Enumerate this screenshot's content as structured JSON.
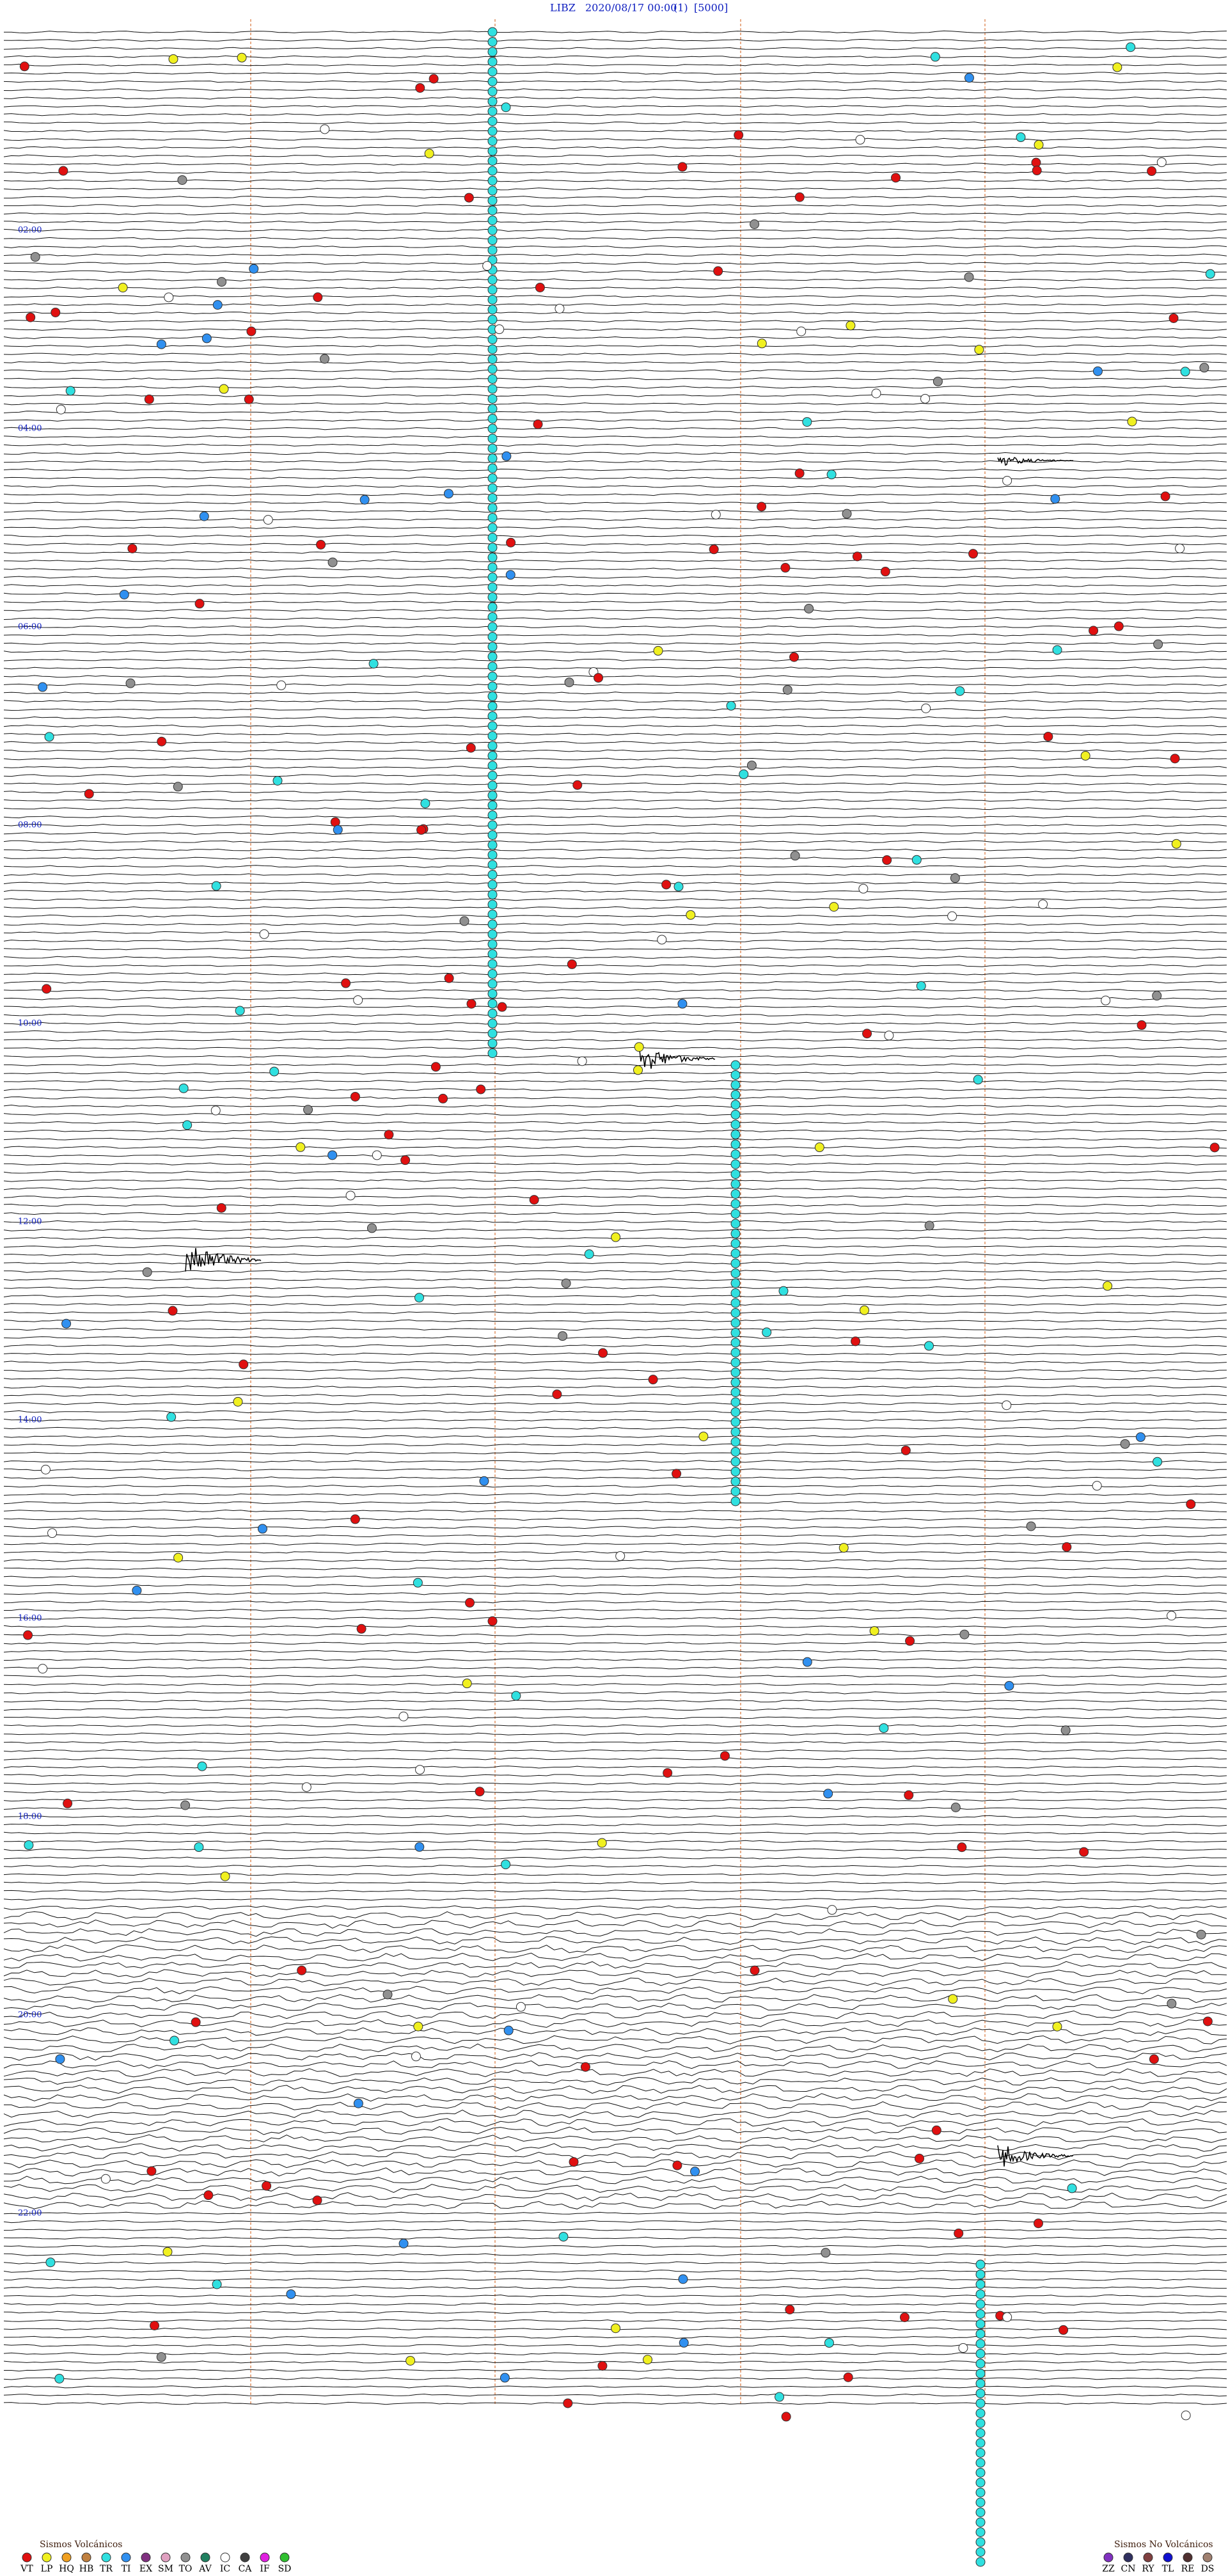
{
  "header": {
    "station": "LIBZ",
    "datetime": "2020/08/17 00:00",
    "channel": "(1)",
    "scale": "[5000]"
  },
  "time_labels": [
    "02:00",
    "04:00",
    "06:00",
    "08:00",
    "10:00",
    "12:00",
    "14:00",
    "16:00",
    "18:00",
    "20:00",
    "22:00"
  ],
  "legend_volcanic": {
    "title": "Sismos Volcánicos",
    "items": [
      {
        "code": "VT",
        "color": "#e01010"
      },
      {
        "code": "LP",
        "color": "#f0f020"
      },
      {
        "code": "HQ",
        "color": "#f0a020"
      },
      {
        "code": "HB",
        "color": "#c08040"
      },
      {
        "code": "TR",
        "color": "#30e0e0"
      },
      {
        "code": "TI",
        "color": "#3090f0"
      },
      {
        "code": "EX",
        "color": "#803080"
      },
      {
        "code": "SM",
        "color": "#e0a0c0"
      },
      {
        "code": "TO",
        "color": "#909090"
      },
      {
        "code": "AV",
        "color": "#208060"
      },
      {
        "code": "IC",
        "color": "#ffffff"
      },
      {
        "code": "CA",
        "color": "#404040"
      },
      {
        "code": "IF",
        "color": "#e020e0"
      },
      {
        "code": "SD",
        "color": "#30c030"
      }
    ]
  },
  "legend_nonvolcanic": {
    "title": "Sismos No Volcánicos",
    "items": [
      {
        "code": "ZZ",
        "color": "#8030c0"
      },
      {
        "code": "CN",
        "color": "#303060"
      },
      {
        "code": "RY",
        "color": "#804040"
      },
      {
        "code": "TL",
        "color": "#1010d0"
      },
      {
        "code": "RE",
        "color": "#503030"
      },
      {
        "code": "DS",
        "color": "#a08070"
      }
    ]
  }
}
